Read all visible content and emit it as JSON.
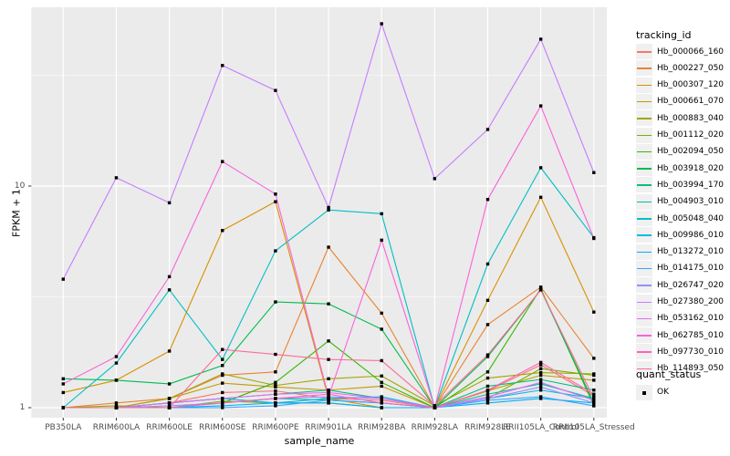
{
  "chart_data": {
    "type": "line",
    "title": "",
    "xlabel": "sample_name",
    "ylabel": "FPKM + 1",
    "yscale": "log10",
    "yticks": [
      1,
      10
    ],
    "ylim": [
      0.9,
      64
    ],
    "grid": "on",
    "legend_position": "right",
    "panel_bg": "#EBEBEB",
    "grid_color": "#FFFFFF",
    "tick_text_color": "#4d4d4d",
    "point_color": "#000000",
    "categories": [
      "PB350LA",
      "RRIM600LA",
      "RRIM600LE",
      "RRIM600SE",
      "RRIM600PE",
      "RRIM901LA",
      "RRIM928BA",
      "RRIM928LA",
      "RRIM928LE",
      "RRII105LA_Control",
      "RRII105LA_Stressed"
    ],
    "series": [
      {
        "name": "Hb_000066_160",
        "color": "#F8766D",
        "values": [
          1.0,
          1.0,
          1.05,
          1.17,
          1.19,
          1.1,
          1.08,
          1.0,
          1.19,
          1.56,
          1.13
        ]
      },
      {
        "name": "Hb_000227_050",
        "color": "#EA8331",
        "values": [
          1.0,
          1.05,
          1.1,
          1.4,
          1.45,
          5.3,
          2.67,
          1.0,
          2.37,
          3.5,
          1.67
        ]
      },
      {
        "name": "Hb_000307_120",
        "color": "#D89000",
        "values": [
          1.17,
          1.33,
          1.8,
          6.3,
          8.5,
          1.1,
          1.0,
          1.0,
          3.05,
          8.9,
          2.7
        ]
      },
      {
        "name": "Hb_000661_070",
        "color": "#C09B00",
        "values": [
          1.0,
          1.0,
          1.1,
          1.29,
          1.24,
          1.2,
          1.25,
          1.0,
          1.19,
          1.4,
          1.33
        ]
      },
      {
        "name": "Hb_000883_040",
        "color": "#A3A500",
        "values": [
          1.0,
          1.0,
          1.1,
          1.42,
          1.26,
          1.35,
          1.39,
          1.02,
          1.36,
          1.44,
          1.42
        ]
      },
      {
        "name": "Hb_001112_020",
        "color": "#7CAE00",
        "values": [
          1.0,
          1.02,
          1.0,
          1.07,
          1.05,
          1.05,
          1.0,
          1.0,
          1.1,
          1.5,
          1.4
        ]
      },
      {
        "name": "Hb_002094_050",
        "color": "#39B600",
        "values": [
          1.0,
          1.0,
          1.0,
          1.05,
          1.3,
          2.0,
          1.3,
          1.0,
          1.45,
          3.45,
          1.02
        ]
      },
      {
        "name": "Hb_003918_020",
        "color": "#00BB4E",
        "values": [
          1.35,
          1.33,
          1.28,
          1.55,
          3.0,
          2.94,
          2.26,
          1.0,
          1.7,
          3.4,
          1.05
        ]
      },
      {
        "name": "Hb_003994_170",
        "color": "#00BF7D",
        "values": [
          1.0,
          1.0,
          1.05,
          1.1,
          1.15,
          1.2,
          1.1,
          1.0,
          1.25,
          1.34,
          1.2
        ]
      },
      {
        "name": "Hb_004903_010",
        "color": "#00C1A3",
        "values": [
          1.0,
          1.0,
          1.0,
          1.05,
          1.1,
          1.08,
          1.05,
          1.0,
          1.15,
          1.28,
          1.1
        ]
      },
      {
        "name": "Hb_005048_040",
        "color": "#00BFC4",
        "values": [
          1.0,
          1.59,
          3.4,
          1.65,
          5.1,
          7.8,
          7.5,
          1.0,
          4.45,
          12.1,
          5.85
        ]
      },
      {
        "name": "Hb_009986_010",
        "color": "#00BAE0",
        "values": [
          1.0,
          1.0,
          1.05,
          1.1,
          1.05,
          1.1,
          1.12,
          1.0,
          1.1,
          1.2,
          1.1
        ]
      },
      {
        "name": "Hb_013272_010",
        "color": "#00B0F6",
        "values": [
          1.0,
          1.0,
          1.0,
          1.02,
          1.05,
          1.05,
          1.0,
          1.0,
          1.05,
          1.1,
          1.05
        ]
      },
      {
        "name": "Hb_014175_010",
        "color": "#35A2FF",
        "values": [
          1.0,
          1.0,
          1.0,
          1.0,
          1.02,
          1.08,
          1.05,
          1.0,
          1.08,
          1.12,
          1.02
        ]
      },
      {
        "name": "Hb_026747_020",
        "color": "#9590FF",
        "values": [
          1.0,
          1.0,
          1.02,
          1.05,
          1.1,
          1.12,
          1.1,
          1.0,
          1.1,
          1.24,
          1.05
        ]
      },
      {
        "name": "Hb_027380_200",
        "color": "#C77CFF",
        "values": [
          3.8,
          10.9,
          8.4,
          35.0,
          27.0,
          8.0,
          54.0,
          10.8,
          18.0,
          46.0,
          11.5
        ]
      },
      {
        "name": "Hb_053162_010",
        "color": "#E76BF3",
        "values": [
          1.0,
          1.0,
          1.05,
          1.1,
          1.15,
          1.17,
          1.1,
          1.0,
          1.12,
          1.3,
          1.08
        ]
      },
      {
        "name": "Hb_062785_010",
        "color": "#FA62DB",
        "values": [
          1.28,
          1.7,
          3.9,
          12.9,
          9.2,
          1.12,
          5.7,
          1.0,
          8.7,
          23.0,
          5.8
        ]
      },
      {
        "name": "Hb_097730_010",
        "color": "#FF62BC",
        "values": [
          1.0,
          1.0,
          1.0,
          1.05,
          1.1,
          1.15,
          1.05,
          1.0,
          1.2,
          1.6,
          1.15
        ]
      },
      {
        "name": "Hb_114893_050",
        "color": "#FF6A98",
        "values": [
          1.0,
          1.0,
          1.0,
          1.83,
          1.74,
          1.65,
          1.63,
          1.02,
          1.73,
          3.4,
          1.1
        ]
      }
    ],
    "legend": {
      "tracking_title": "tracking_id",
      "quant_title": "quant_status",
      "quant_label": "OK"
    }
  }
}
